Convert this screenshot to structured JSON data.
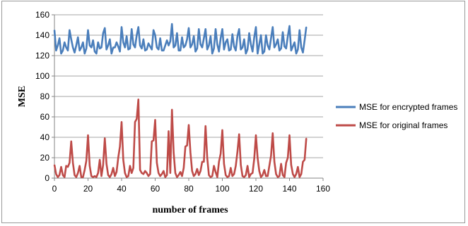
{
  "chart_data": {
    "type": "line",
    "title": "",
    "xlabel": "number  of frames",
    "ylabel": "MSE",
    "xlim": [
      0,
      160
    ],
    "ylim": [
      0,
      160
    ],
    "xticks": [
      0,
      20,
      40,
      60,
      80,
      100,
      120,
      140,
      160
    ],
    "yticks": [
      0,
      20,
      40,
      60,
      80,
      100,
      120,
      140,
      160
    ],
    "grid": "horizontal",
    "legend_position": "right",
    "series": [
      {
        "name": "MSE for encrypted frames",
        "color": "#4a7ebb",
        "x": [
          0,
          1,
          2,
          3,
          4,
          5,
          6,
          7,
          8,
          9,
          10,
          11,
          12,
          13,
          14,
          15,
          16,
          17,
          18,
          19,
          20,
          21,
          22,
          23,
          24,
          25,
          26,
          27,
          28,
          29,
          30,
          31,
          32,
          33,
          34,
          35,
          36,
          37,
          38,
          39,
          40,
          41,
          42,
          43,
          44,
          45,
          46,
          47,
          48,
          49,
          50,
          51,
          52,
          53,
          54,
          55,
          56,
          57,
          58,
          59,
          60,
          61,
          62,
          63,
          64,
          65,
          66,
          67,
          68,
          69,
          70,
          71,
          72,
          73,
          74,
          75,
          76,
          77,
          78,
          79,
          80,
          81,
          82,
          83,
          84,
          85,
          86,
          87,
          88,
          89,
          90,
          91,
          92,
          93,
          94,
          95,
          96,
          97,
          98,
          99,
          100,
          101,
          102,
          103,
          104,
          105,
          106,
          107,
          108,
          109,
          110,
          111,
          112,
          113,
          114,
          115,
          116,
          117,
          118,
          119,
          120,
          121,
          122,
          123,
          124,
          125,
          126,
          127,
          128,
          129,
          130,
          131,
          132,
          133,
          134,
          135,
          136,
          137,
          138,
          139,
          140,
          141,
          142,
          143,
          144,
          145,
          146,
          147,
          148,
          149,
          150
        ],
        "values": [
          145,
          125,
          130,
          137,
          122,
          125,
          133,
          128,
          125,
          145,
          136,
          128,
          123,
          130,
          138,
          125,
          128,
          133,
          122,
          127,
          145,
          130,
          128,
          135,
          124,
          122,
          133,
          127,
          128,
          142,
          147,
          126,
          130,
          136,
          122,
          128,
          128,
          133,
          129,
          124,
          148,
          133,
          128,
          139,
          126,
          127,
          146,
          131,
          128,
          140,
          148,
          130,
          127,
          136,
          125,
          126,
          132,
          129,
          126,
          145,
          140,
          128,
          126,
          137,
          125,
          125,
          130,
          135,
          130,
          134,
          151,
          128,
          130,
          142,
          125,
          125,
          138,
          128,
          130,
          136,
          147,
          128,
          131,
          139,
          124,
          127,
          146,
          131,
          128,
          137,
          146,
          126,
          130,
          139,
          122,
          127,
          146,
          131,
          124,
          137,
          146,
          126,
          133,
          136,
          125,
          126,
          141,
          129,
          125,
          139,
          146,
          126,
          128,
          136,
          122,
          126,
          142,
          131,
          124,
          138,
          148,
          122,
          131,
          140,
          122,
          124,
          140,
          130,
          126,
          137,
          148,
          128,
          131,
          136,
          125,
          127,
          143,
          129,
          127,
          139,
          149,
          125,
          129,
          133,
          122,
          126,
          145,
          128,
          123,
          135,
          148
        ]
      },
      {
        "name": "MSE for original frames",
        "color": "#be4b48",
        "x": [
          0,
          1,
          2,
          3,
          4,
          5,
          6,
          7,
          8,
          9,
          10,
          11,
          12,
          13,
          14,
          15,
          16,
          17,
          18,
          19,
          20,
          21,
          22,
          23,
          24,
          25,
          26,
          27,
          28,
          29,
          30,
          31,
          32,
          33,
          34,
          35,
          36,
          37,
          38,
          39,
          40,
          41,
          42,
          43,
          44,
          45,
          46,
          47,
          48,
          49,
          50,
          51,
          52,
          53,
          54,
          55,
          56,
          57,
          58,
          59,
          60,
          61,
          62,
          63,
          64,
          65,
          66,
          67,
          68,
          69,
          70,
          71,
          72,
          73,
          74,
          75,
          76,
          77,
          78,
          79,
          80,
          81,
          82,
          83,
          84,
          85,
          86,
          87,
          88,
          89,
          90,
          91,
          92,
          93,
          94,
          95,
          96,
          97,
          98,
          99,
          100,
          101,
          102,
          103,
          104,
          105,
          106,
          107,
          108,
          109,
          110,
          111,
          112,
          113,
          114,
          115,
          116,
          117,
          118,
          119,
          120,
          121,
          122,
          123,
          124,
          125,
          126,
          127,
          128,
          129,
          130,
          131,
          132,
          133,
          134,
          135,
          136,
          137,
          138,
          139,
          140,
          141,
          142,
          143,
          144,
          145,
          146,
          147,
          148,
          149,
          150
        ],
        "values": [
          13,
          4,
          1,
          3,
          11,
          3,
          1,
          12,
          11,
          15,
          36,
          15,
          3,
          1,
          5,
          12,
          1,
          1,
          8,
          17,
          42,
          12,
          2,
          1,
          2,
          1,
          5,
          18,
          2,
          13,
          39,
          14,
          3,
          1,
          4,
          10,
          2,
          6,
          20,
          31,
          55,
          18,
          5,
          1,
          2,
          12,
          5,
          10,
          55,
          58,
          77,
          8,
          5,
          4,
          7,
          5,
          2,
          4,
          36,
          37,
          57,
          15,
          5,
          2,
          4,
          7,
          1,
          3,
          46,
          5,
          67,
          25,
          5,
          1,
          3,
          6,
          2,
          10,
          31,
          32,
          52,
          25,
          7,
          2,
          4,
          9,
          3,
          7,
          16,
          16,
          51,
          20,
          3,
          1,
          2,
          12,
          6,
          1,
          16,
          24,
          47,
          14,
          3,
          1,
          2,
          10,
          2,
          4,
          12,
          26,
          43,
          13,
          2,
          1,
          3,
          12,
          1,
          4,
          5,
          19,
          42,
          20,
          7,
          1,
          3,
          8,
          2,
          2,
          12,
          22,
          44,
          16,
          4,
          1,
          2,
          14,
          3,
          1,
          15,
          20,
          42,
          13,
          4,
          1,
          4,
          11,
          1,
          4,
          16,
          18,
          39
        ]
      }
    ]
  }
}
